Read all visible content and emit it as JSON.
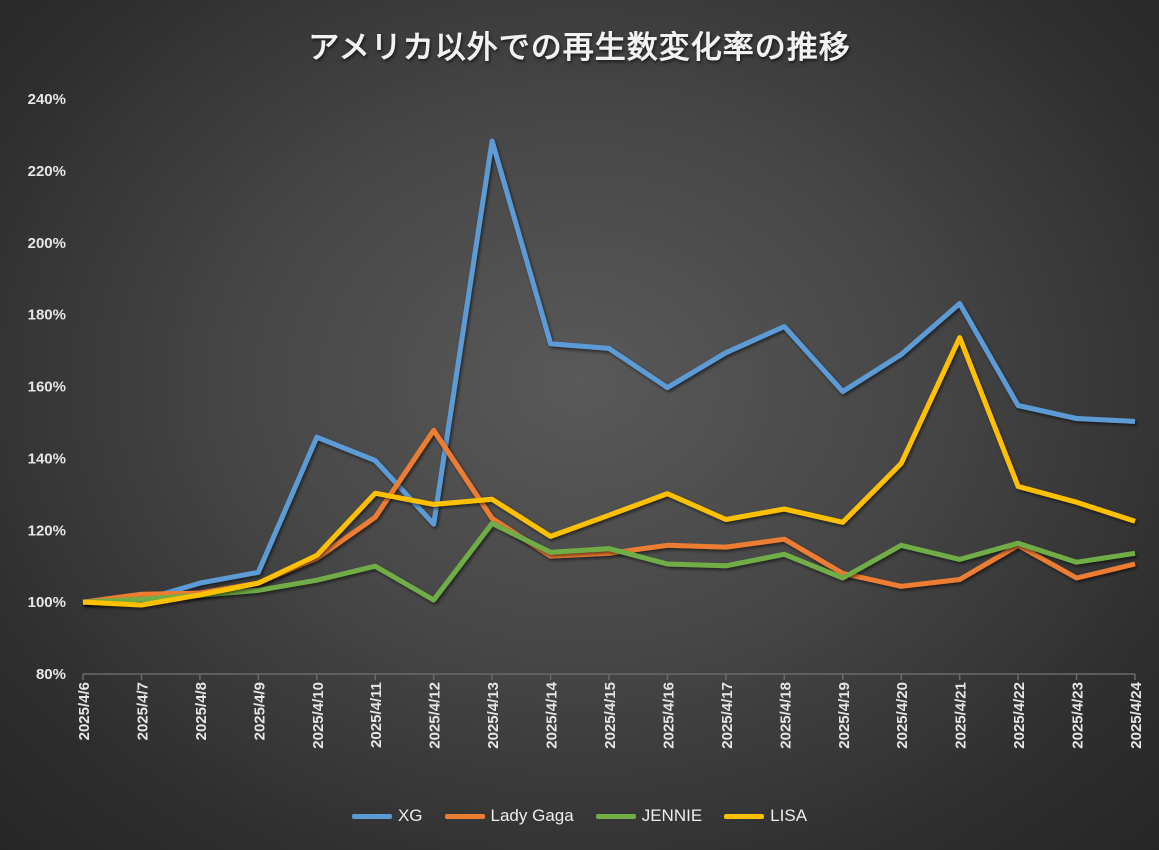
{
  "chart_data": {
    "type": "line",
    "title": "アメリカ以外での再生数変化率の推移",
    "xlabel": "",
    "ylabel": "",
    "ylim": [
      80,
      240
    ],
    "y_ticks": [
      "80%",
      "100%",
      "120%",
      "140%",
      "160%",
      "180%",
      "200%",
      "220%",
      "240%"
    ],
    "y_tick_values": [
      80,
      100,
      120,
      140,
      160,
      180,
      200,
      220,
      240
    ],
    "grid": false,
    "legend_position": "bottom",
    "categories": [
      "2025/4/6",
      "2025/4/7",
      "2025/4/8",
      "2025/4/9",
      "2025/4/10",
      "2025/4/11",
      "2025/4/12",
      "2025/4/13",
      "2025/4/14",
      "2025/4/15",
      "2025/4/16",
      "2025/4/17",
      "2025/4/18",
      "2025/4/19",
      "2025/4/20",
      "2025/4/21",
      "2025/4/22",
      "2025/4/23",
      "2025/4/24"
    ],
    "series": [
      {
        "name": "XG",
        "color": "#5B9BD5",
        "values": [
          100,
          100.5,
          105.3,
          108.3,
          145.9,
          139.4,
          121.7,
          228.3,
          171.9,
          170.6,
          159.7,
          169.4,
          176.7,
          158.6,
          168.9,
          183.1,
          154.7,
          151.1,
          150.3
        ]
      },
      {
        "name": "Lady Gaga",
        "color": "#ED7D31",
        "values": [
          100,
          102.2,
          102.5,
          105.3,
          112.2,
          123.6,
          147.8,
          123.3,
          112.8,
          113.6,
          115.8,
          115.3,
          117.5,
          108,
          104.4,
          106.3,
          115.8,
          106.7,
          110.6
        ]
      },
      {
        "name": "JENNIE",
        "color": "#70AD47",
        "values": [
          100,
          100.8,
          101.9,
          103.3,
          106.1,
          110,
          100.6,
          121.9,
          113.9,
          114.9,
          110.6,
          110.1,
          113.3,
          106.7,
          115.8,
          111.9,
          116.4,
          111.1,
          113.6
        ]
      },
      {
        "name": "LISA",
        "color": "#FFC000",
        "values": [
          100,
          99.2,
          102,
          105.3,
          113,
          130.3,
          127.2,
          128.6,
          118.3,
          124.2,
          130.2,
          123,
          125.9,
          122.2,
          138.6,
          173.6,
          132.2,
          127.8,
          122.5
        ]
      }
    ]
  }
}
